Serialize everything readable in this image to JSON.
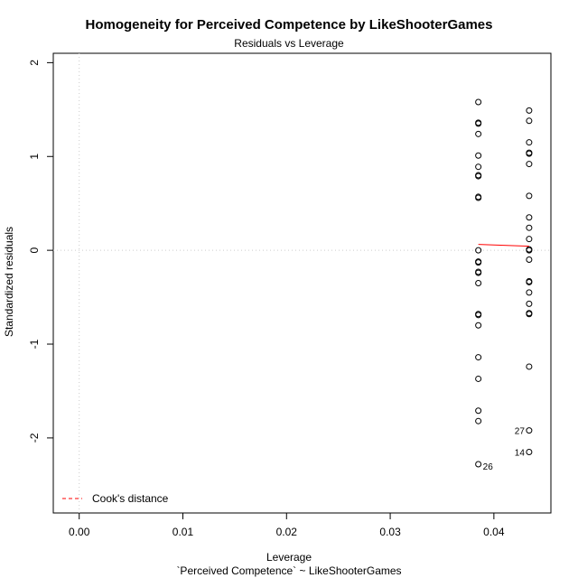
{
  "chart_data": {
    "type": "scatter",
    "title": "Homogeneity for Perceived Competence by LikeShooterGames",
    "subtitle": "Residuals vs Leverage",
    "xlabel": "Leverage",
    "caption": "`Perceived Competence` ~ LikeShooterGames",
    "ylabel": "Standardized residuals",
    "xlim": [
      -0.0025,
      0.0455
    ],
    "ylim": [
      -2.8,
      2.1
    ],
    "x_ticks": [
      "0.00",
      "0.01",
      "0.02",
      "0.03",
      "0.04"
    ],
    "y_ticks": [
      "-2",
      "-1",
      "0",
      "1",
      "2"
    ],
    "groups": [
      {
        "x": 0.0385,
        "y": [
          1.58,
          1.36,
          1.35,
          1.24,
          1.01,
          0.89,
          0.8,
          0.79,
          0.57,
          0.56,
          0.0,
          -0.12,
          -0.13,
          -0.23,
          -0.24,
          -0.35,
          -0.68,
          -0.69,
          -0.8,
          -1.14,
          -1.37,
          -1.71,
          -1.82,
          -2.28
        ]
      },
      {
        "x": 0.0434,
        "y": [
          1.49,
          1.38,
          1.15,
          1.04,
          1.03,
          0.92,
          0.58,
          0.35,
          0.24,
          0.12,
          0.01,
          0.0,
          -0.1,
          -0.33,
          -0.34,
          -0.45,
          -0.57,
          -0.67,
          -0.68,
          -1.24,
          -1.92,
          -2.15
        ]
      }
    ],
    "smoother": {
      "x": [
        0.0385,
        0.0434
      ],
      "y": [
        0.063,
        0.044
      ],
      "color": "#ff0000"
    },
    "point_labels": [
      {
        "text": "26",
        "x": 0.0385,
        "y": -2.28,
        "side": "right"
      },
      {
        "text": "27",
        "x": 0.0434,
        "y": -1.92,
        "side": "left"
      },
      {
        "text": "14",
        "x": 0.0434,
        "y": -2.15,
        "side": "left"
      }
    ],
    "reference_lines": {
      "h": 0,
      "v": 0,
      "color": "#cccccc",
      "dash": "dotted"
    },
    "legend": {
      "label": "Cook's distance",
      "position": "bottom-left",
      "color": "#ff0000",
      "dash": "dashed"
    },
    "grid": false
  }
}
